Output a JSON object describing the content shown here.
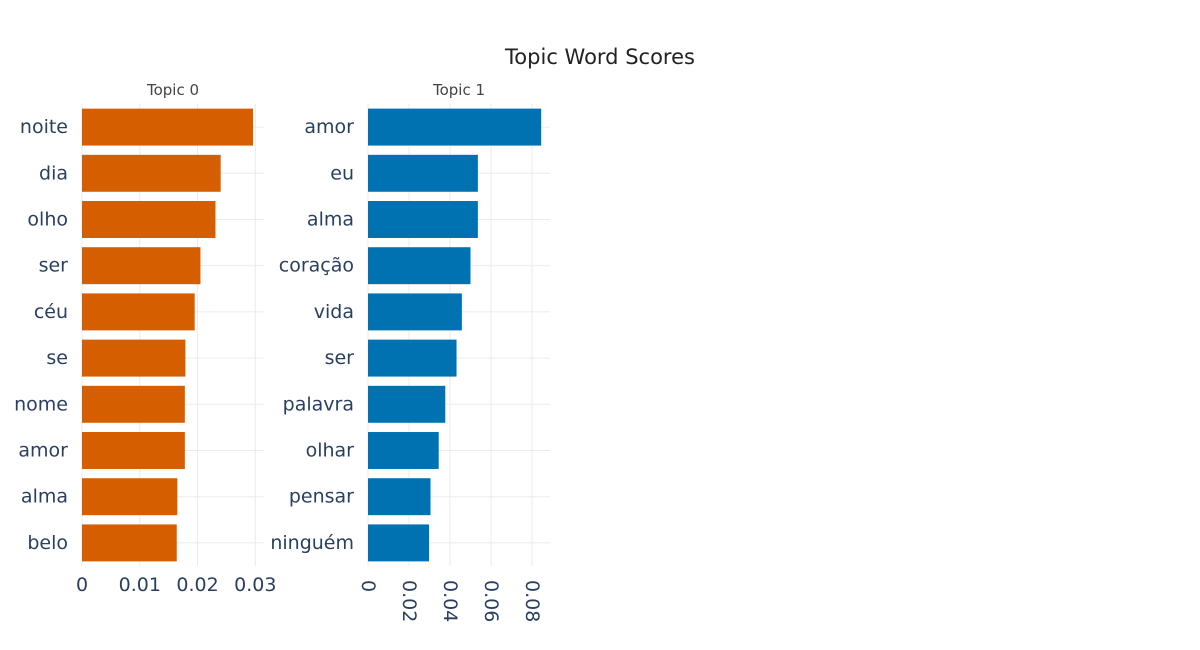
{
  "chart_data": {
    "type": "bar",
    "orientation": "horizontal",
    "title": "Topic Word Scores",
    "panels": [
      {
        "subtitle": "Topic 0",
        "color": "#D55E00",
        "categories": [
          "noite",
          "dia",
          "olho",
          "ser",
          "céu",
          "se",
          "nome",
          "amor",
          "alma",
          "belo"
        ],
        "values": [
          0.0296,
          0.024,
          0.0231,
          0.0205,
          0.0195,
          0.0179,
          0.0178,
          0.0178,
          0.0165,
          0.0164
        ],
        "xlim": [
          0,
          0.0315
        ],
        "xticks": [
          0,
          0.01,
          0.02,
          0.03
        ],
        "xtick_labels": [
          "0",
          "0.01",
          "0.02",
          "0.03"
        ],
        "tick_rotation": 0
      },
      {
        "subtitle": "Topic 1",
        "color": "#0072B2",
        "categories": [
          "amor",
          "eu",
          "alma",
          "coração",
          "vida",
          "ser",
          "palavra",
          "olhar",
          "pensar",
          "ninguém"
        ],
        "values": [
          0.0845,
          0.0536,
          0.0536,
          0.05,
          0.0458,
          0.0432,
          0.0377,
          0.0345,
          0.0305,
          0.0298
        ],
        "xlim": [
          0,
          0.0888
        ],
        "xticks": [
          0,
          0.02,
          0.04,
          0.06,
          0.08
        ],
        "xtick_labels": [
          "0",
          "0.02",
          "0.04",
          "0.06",
          "0.08"
        ],
        "tick_rotation": 90
      }
    ],
    "grid": true,
    "legend": "none"
  }
}
